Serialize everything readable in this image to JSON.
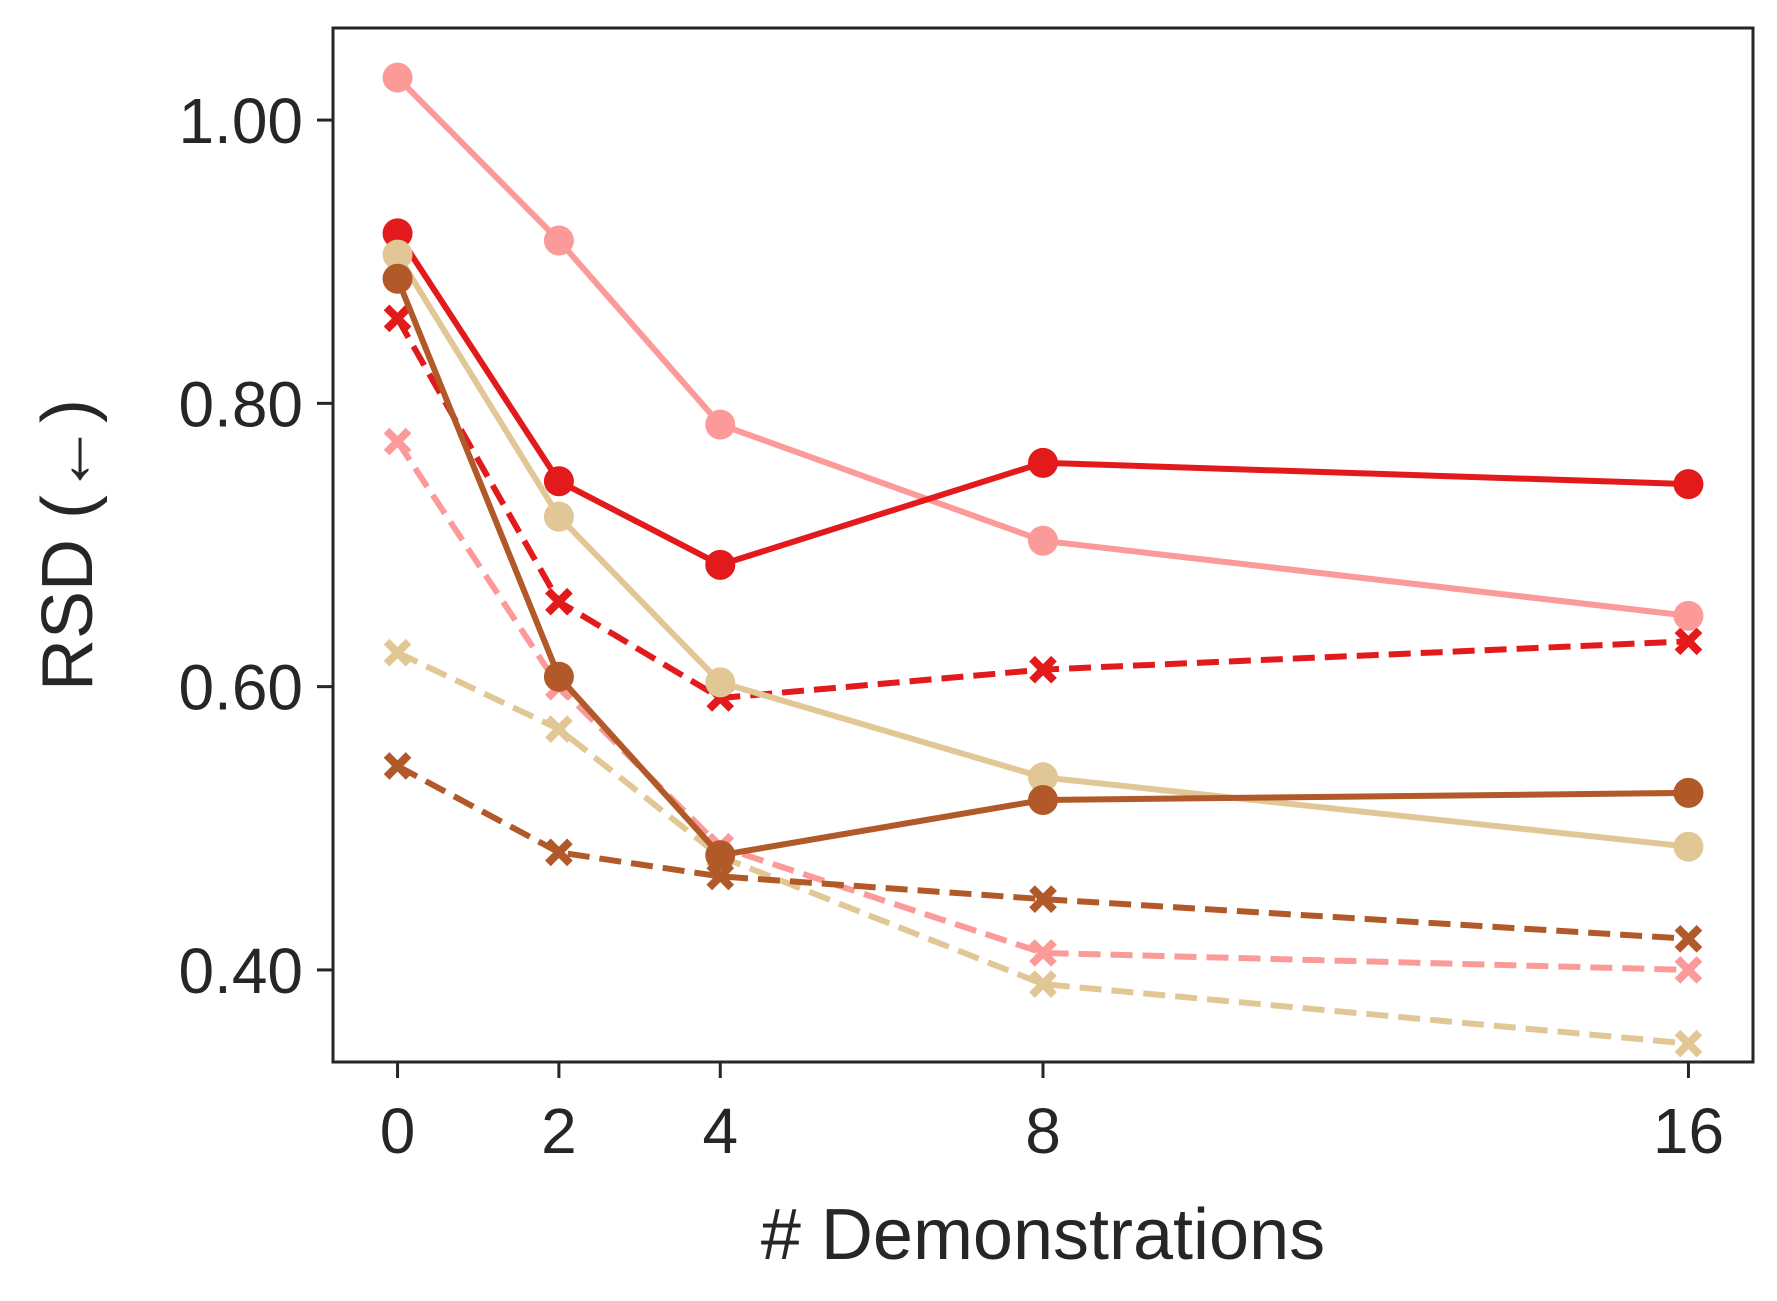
{
  "chart_data": {
    "type": "line",
    "title": "",
    "xlabel": "# Demonstrations",
    "ylabel": "RSD (←)",
    "x": [
      0,
      2,
      4,
      8,
      16
    ],
    "xticks": [
      0,
      2,
      4,
      8,
      16
    ],
    "xlim": [
      -0.8,
      16.8
    ],
    "ylim": [
      0.335,
      1.065
    ],
    "yticks": [
      {
        "value": 0.4,
        "label": "0.40"
      },
      {
        "value": 0.6,
        "label": "0.60"
      },
      {
        "value": 0.8,
        "label": "0.80"
      },
      {
        "value": 1.0,
        "label": "1.00"
      }
    ],
    "grid": false,
    "legend": "none",
    "series": [
      {
        "name": "light-pink-solid",
        "color": "#fb9a99",
        "style": "solid",
        "marker": "circle",
        "values": [
          1.03,
          0.915,
          0.785,
          0.703,
          0.65
        ]
      },
      {
        "name": "red-solid",
        "color": "#e31a1c",
        "style": "solid",
        "marker": "circle",
        "values": [
          0.92,
          0.745,
          0.686,
          0.758,
          0.743
        ]
      },
      {
        "name": "tan-solid",
        "color": "#e2c796",
        "style": "solid",
        "marker": "circle",
        "values": [
          0.905,
          0.72,
          0.603,
          0.536,
          0.487
        ]
      },
      {
        "name": "brown-solid",
        "color": "#b15928",
        "style": "solid",
        "marker": "circle",
        "values": [
          0.888,
          0.607,
          0.481,
          0.52,
          0.525
        ]
      },
      {
        "name": "red-dashed",
        "color": "#e31a1c",
        "style": "dashed",
        "marker": "x",
        "values": [
          0.86,
          0.66,
          0.592,
          0.612,
          0.632
        ]
      },
      {
        "name": "light-pink-dashed",
        "color": "#fb9a99",
        "style": "dashed",
        "marker": "x",
        "values": [
          0.773,
          0.6,
          0.487,
          0.412,
          0.4
        ]
      },
      {
        "name": "tan-dashed",
        "color": "#e2c796",
        "style": "dashed",
        "marker": "x",
        "values": [
          0.624,
          0.57,
          0.48,
          0.39,
          0.348
        ]
      },
      {
        "name": "brown-dashed",
        "color": "#b15928",
        "style": "dashed",
        "marker": "x",
        "values": [
          0.544,
          0.483,
          0.466,
          0.45,
          0.422
        ]
      }
    ]
  }
}
